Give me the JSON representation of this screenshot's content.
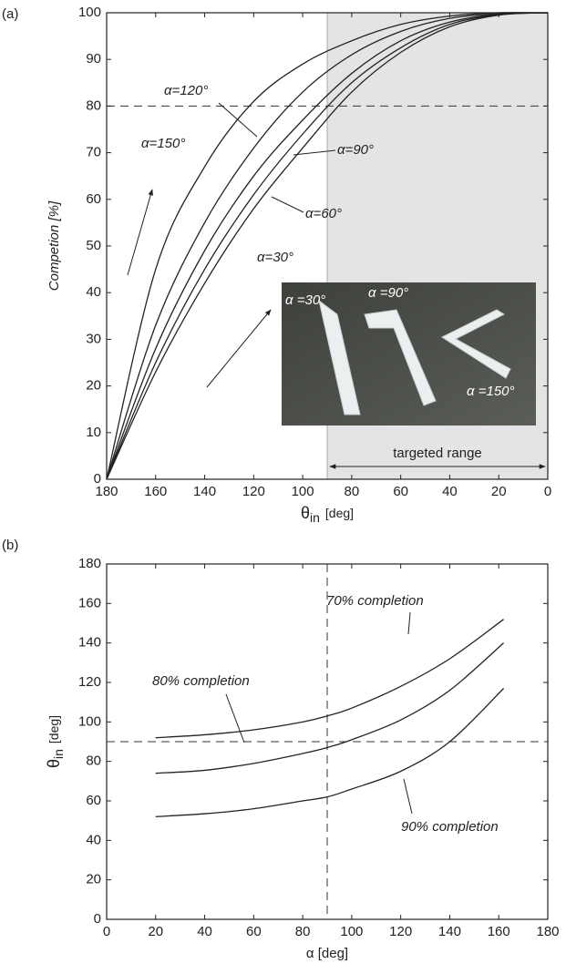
{
  "chart_data": [
    {
      "type": "line",
      "panel": "(a)",
      "ylabel": "Competion [%]",
      "xlabel": {
        "symbol": "θ",
        "subscript": "in",
        "unit": "[deg]"
      },
      "x": [
        180,
        160,
        140,
        120,
        100,
        80,
        60,
        40,
        20,
        0
      ],
      "xlim": [
        180,
        0
      ],
      "xticks": [
        180,
        160,
        140,
        120,
        100,
        80,
        60,
        40,
        20,
        0
      ],
      "ylim": [
        0,
        100
      ],
      "yticks": [
        0,
        10,
        20,
        30,
        40,
        50,
        60,
        70,
        80,
        90,
        100
      ],
      "shaded_xrange": [
        90,
        0
      ],
      "hlines": [
        80
      ],
      "range_label": "targeted range",
      "inset_labels": [
        "α =30°",
        "α =90°",
        "α =150°"
      ],
      "series": [
        {
          "name": "α=150°",
          "color": "#222222",
          "values": [
            0,
            45,
            67,
            81,
            89,
            94,
            97.5,
            99.3,
            100,
            100
          ]
        },
        {
          "name": "α=120°",
          "color": "#222222",
          "values": [
            0,
            33,
            55,
            71,
            83,
            91,
            96,
            98.8,
            99.8,
            100
          ]
        },
        {
          "name": "α=90°",
          "color": "#222222",
          "values": [
            0,
            28,
            49,
            65,
            77,
            87,
            94,
            98,
            99.7,
            100
          ]
        },
        {
          "name": "α=60°",
          "color": "#222222",
          "values": [
            0,
            25,
            45,
            61,
            74,
            85,
            92.5,
            97.5,
            99.6,
            100
          ]
        },
        {
          "name": "α=30°",
          "color": "#222222",
          "values": [
            0,
            23,
            42,
            58,
            71,
            83,
            91.5,
            97,
            99.5,
            100
          ]
        }
      ]
    },
    {
      "type": "line",
      "panel": "(b)",
      "ylabel": {
        "symbol": "θ",
        "subscript": "in",
        "unit": "[deg]"
      },
      "xlabel": "α [deg]",
      "x": [
        20,
        40,
        60,
        80,
        90,
        100,
        120,
        140,
        162
      ],
      "xlim": [
        0,
        180
      ],
      "xticks": [
        0,
        20,
        40,
        60,
        80,
        100,
        120,
        140,
        160,
        180
      ],
      "ylim": [
        0,
        180
      ],
      "yticks": [
        0,
        20,
        40,
        60,
        80,
        100,
        120,
        140,
        160,
        180
      ],
      "hlines": [
        90
      ],
      "vlines": [
        90
      ],
      "series": [
        {
          "name": "70% completion",
          "color": "#222222",
          "values": [
            92,
            93.5,
            96,
            100,
            103,
            107,
            118,
            132,
            152
          ]
        },
        {
          "name": "80% completion",
          "color": "#222222",
          "values": [
            74,
            75.5,
            79,
            84,
            87,
            91,
            101,
            116,
            140
          ]
        },
        {
          "name": "90% completion",
          "color": "#222222",
          "values": [
            52,
            53.5,
            56,
            60,
            62,
            66,
            75,
            90,
            117
          ]
        }
      ]
    }
  ]
}
